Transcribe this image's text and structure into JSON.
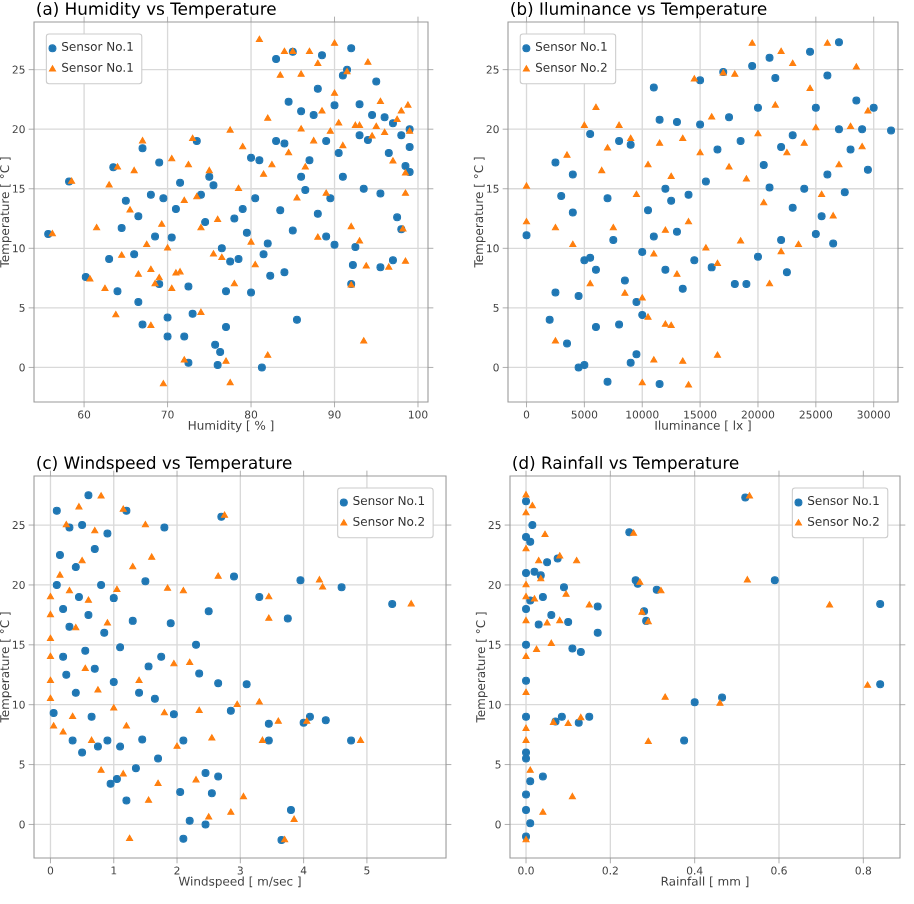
{
  "chart_data": [
    {
      "type": "scatter",
      "title": "(a) Humidity vs Temperature",
      "xlabel": "Humidity [ % ]",
      "ylabel": "Temperature [ °C ]",
      "xlim": [
        54,
        101.2
      ],
      "ylim": [
        -2.9,
        29
      ],
      "xticks": [
        60,
        70,
        80,
        90,
        100
      ],
      "yticks": [
        0,
        5,
        10,
        15,
        20,
        25
      ],
      "grid": true,
      "legend": "top left",
      "series": [
        {
          "name": "Sensor No.1",
          "color": "#1f77b4",
          "marker": "circle",
          "x": [
            55.7,
            58.2,
            60.2,
            63,
            63.5,
            64,
            64.5,
            65,
            66,
            66.5,
            67,
            66.5,
            67,
            68,
            68.5,
            69,
            69,
            69.5,
            70,
            70,
            70.5,
            71,
            71.5,
            72,
            72.5,
            72.5,
            73,
            73.5,
            74,
            74.5,
            75,
            75.5,
            75.7,
            76,
            76.3,
            76.5,
            77,
            77,
            77.5,
            78,
            78.5,
            79,
            79.5,
            80,
            80,
            80.5,
            81,
            81.3,
            81.5,
            82,
            82.3,
            83,
            83,
            83.5,
            84,
            84,
            84.5,
            85,
            85.5,
            85,
            86,
            86,
            86.5,
            87,
            87.5,
            88,
            88,
            88.5,
            89,
            89,
            89.5,
            90,
            90,
            90.5,
            91,
            91,
            91.5,
            92,
            92,
            92.2,
            92.5,
            93,
            93,
            93.5,
            94,
            94.5,
            95,
            95.5,
            95.5,
            96,
            96.5,
            97,
            97,
            97.5,
            98,
            98,
            98.5,
            99,
            99,
            99
          ],
          "values": [
            11.2,
            15.6,
            7.6,
            9.1,
            16.8,
            6.4,
            11.7,
            14,
            9.5,
            12.7,
            18.4,
            5.5,
            3.6,
            14.5,
            11,
            17.2,
            7,
            14.2,
            4.2,
            2.6,
            10.9,
            13.3,
            15.5,
            2.6,
            0.4,
            6.8,
            4.5,
            19,
            14.5,
            12.2,
            16,
            15.3,
            1.9,
            0.2,
            1.3,
            10,
            3.4,
            6.4,
            8.9,
            12.5,
            9.1,
            13.3,
            11.3,
            6.3,
            17.6,
            14.2,
            17.4,
            0,
            9.5,
            10.4,
            7.7,
            19,
            25.9,
            13.2,
            8,
            18.8,
            22.3,
            11.5,
            4,
            26.5,
            21.5,
            16,
            14.9,
            17.4,
            21.2,
            12.9,
            23.4,
            26.2,
            19,
            11,
            14.2,
            22,
            10.3,
            18,
            24.5,
            16,
            25,
            26.8,
            7,
            8.6,
            10.1,
            22.1,
            19.5,
            15,
            19.1,
            21.2,
            24,
            8.4,
            14.6,
            21,
            18,
            20.5,
            9,
            12.6,
            19.5,
            11.6,
            16.9,
            20,
            16.4,
            18.5
          ]
        },
        {
          "name": "Sensor No.1",
          "color": "#ff7f0e",
          "marker": "triangle",
          "x": [
            56.2,
            58.5,
            60.7,
            61.5,
            62.5,
            63,
            63.8,
            64,
            64.5,
            65.5,
            66,
            66.5,
            67,
            67.5,
            68,
            68,
            68.5,
            69,
            69.3,
            69.5,
            70,
            70.5,
            70.5,
            71,
            71.5,
            72,
            72,
            72.5,
            73,
            73.5,
            74,
            74,
            75,
            75.5,
            76,
            76.5,
            77,
            77.5,
            77.5,
            78,
            78.5,
            79,
            80,
            80.5,
            81,
            81.5,
            82,
            82,
            82.5,
            83.5,
            84,
            84.5,
            85,
            85.5,
            86,
            86,
            86.5,
            87,
            87.5,
            88,
            88,
            88.5,
            89,
            89.5,
            90,
            90,
            90.5,
            91,
            91.5,
            92,
            92,
            92.5,
            93,
            93,
            93.5,
            93.8,
            94,
            94.5,
            95,
            95.5,
            96,
            96.5,
            97,
            97.5,
            98,
            98.2,
            98.5,
            98.5,
            99,
            98.8,
            98.5
          ],
          "values": [
            11.2,
            15.6,
            7.4,
            11.7,
            6.6,
            15.3,
            4.4,
            16.8,
            9.4,
            13.2,
            16.5,
            7.8,
            19,
            10.3,
            8.2,
            3.5,
            7,
            7.5,
            12,
            -1.4,
            10,
            6.6,
            17.5,
            7.9,
            8,
            0.6,
            14,
            17,
            19.2,
            14.3,
            4.6,
            11.7,
            16.5,
            9.5,
            12.4,
            9.2,
            0.5,
            -1.3,
            19.9,
            7,
            15,
            18.5,
            10.5,
            8.6,
            27.5,
            16.2,
            20.9,
            1,
            17,
            24.5,
            26.5,
            18,
            26.5,
            14.2,
            20,
            24.6,
            16.8,
            26.5,
            19,
            25.5,
            10.9,
            21.5,
            14.6,
            19.8,
            27.2,
            23,
            20.5,
            18.6,
            24.8,
            11.8,
            6.9,
            20.3,
            10.6,
            20.3,
            2.2,
            8.5,
            25.6,
            19.4,
            20.2,
            22.3,
            19.7,
            8.4,
            17.3,
            20.8,
            21.5,
            11.6,
            8.9,
            14.6,
            19.8,
            22,
            16.3
          ]
        }
      ]
    },
    {
      "type": "scatter",
      "title": "(b) Iluminance vs Temperature",
      "xlabel": "Iluminance [ lx ]",
      "ylabel": "Temperature [ °C ]",
      "xlim": [
        -1600,
        32100
      ],
      "ylim": [
        -2.9,
        29
      ],
      "xticks": [
        0,
        5000,
        10000,
        15000,
        20000,
        25000,
        30000
      ],
      "yticks": [
        0,
        5,
        10,
        15,
        20,
        25
      ],
      "grid": true,
      "legend": "top left",
      "series": [
        {
          "name": "Sensor No.1",
          "color": "#1f77b4",
          "marker": "circle",
          "x": [
            0,
            2000,
            2500,
            2500,
            3000,
            3500,
            4000,
            4000,
            4500,
            4500,
            5000,
            5000,
            5500,
            5500,
            6000,
            6000,
            7000,
            7000,
            7500,
            8000,
            8000,
            8500,
            9000,
            9000,
            9500,
            9500,
            10000,
            10000,
            10500,
            11000,
            11000,
            11500,
            11500,
            12000,
            12000,
            12500,
            13000,
            13000,
            13500,
            14000,
            14500,
            15000,
            15000,
            15500,
            16000,
            16500,
            17000,
            17500,
            18000,
            18500,
            19000,
            19500,
            20000,
            20000,
            20500,
            21000,
            21000,
            21500,
            22000,
            22000,
            22500,
            23000,
            23000,
            24000,
            24500,
            25000,
            25000,
            25500,
            26000,
            26000,
            26500,
            27000,
            27000,
            27500,
            28000,
            28500,
            29000,
            29500,
            30000,
            31500
          ],
          "values": [
            11.1,
            4,
            17.2,
            6.3,
            14.4,
            2,
            16.2,
            13,
            6,
            0,
            9,
            0.2,
            9.2,
            19.6,
            8.2,
            3.4,
            14.2,
            -1.2,
            10.7,
            3.6,
            19,
            7.3,
            0.4,
            18.7,
            1.1,
            5.5,
            4.4,
            9.7,
            13.2,
            23.5,
            11,
            20.8,
            -1.4,
            15,
            8.2,
            14,
            20.6,
            11.4,
            6.6,
            14.5,
            9,
            24.1,
            20.4,
            15.6,
            8.4,
            18.3,
            24.8,
            21,
            7,
            19,
            7,
            25.3,
            9.3,
            21.8,
            17,
            15.1,
            26,
            24.3,
            10.7,
            18.5,
            8,
            13.4,
            19.5,
            15,
            26.5,
            11.2,
            21.8,
            12.7,
            24.5,
            16.2,
            10.4,
            27.3,
            20,
            14.7,
            18.3,
            22.4,
            20,
            16.6,
            21.8,
            19.9
          ]
        },
        {
          "name": "Sensor No.2",
          "color": "#ff7f0e",
          "marker": "triangle",
          "x": [
            0,
            0,
            2500,
            2500,
            3500,
            4000,
            5000,
            5500,
            6000,
            6500,
            7000,
            7500,
            8000,
            8500,
            9000,
            9500,
            10000,
            10000,
            10500,
            10500,
            11000,
            11000,
            11500,
            12000,
            12000,
            12500,
            12500,
            13000,
            13500,
            13500,
            14000,
            14000,
            14500,
            15000,
            15500,
            16000,
            16500,
            16500,
            17000,
            17500,
            18000,
            18500,
            19000,
            19500,
            20000,
            20500,
            21000,
            21500,
            22000,
            22000,
            22500,
            23000,
            23500,
            24000,
            24500,
            25000,
            25500,
            26000,
            26500,
            27000,
            28000,
            28500,
            29000,
            29500
          ],
          "values": [
            15.2,
            12.2,
            2.2,
            11.7,
            17.8,
            10.3,
            20.3,
            7,
            21.8,
            16.5,
            18.4,
            11.7,
            20.3,
            6.2,
            19.2,
            14.5,
            -1.3,
            5.8,
            4.2,
            17,
            9.5,
            0.6,
            18.8,
            3.6,
            11.5,
            16,
            3.5,
            7.8,
            19.2,
            0.5,
            -1.5,
            12.2,
            24.2,
            18,
            10,
            21,
            1,
            8.7,
            24.7,
            16.8,
            24.6,
            10.6,
            15.8,
            27.2,
            19.6,
            13.8,
            7,
            22,
            26.5,
            9.7,
            18,
            25.5,
            10.3,
            18.8,
            23.4,
            20.1,
            14.5,
            27.2,
            12.7,
            17,
            20.2,
            25.2,
            18.5,
            21.5
          ]
        }
      ]
    },
    {
      "type": "scatter",
      "title": "(c) Windspeed vs Temperature",
      "xlabel": "Windspeed [ m/sec ]",
      "ylabel": "Temperature [ °C ]",
      "xlim": [
        -0.26,
        6.25
      ],
      "ylim": [
        -2.8,
        29.1
      ],
      "xticks": [
        0,
        1,
        2,
        3,
        4,
        5
      ],
      "yticks": [
        0,
        5,
        10,
        15,
        20,
        25
      ],
      "grid": true,
      "legend": "top right",
      "series": [
        {
          "name": "Sensor No.1",
          "color": "#1f77b4",
          "marker": "circle",
          "x": [
            0.05,
            0.1,
            0.1,
            0.15,
            0.2,
            0.2,
            0.25,
            0.3,
            0.3,
            0.35,
            0.4,
            0.4,
            0.45,
            0.5,
            0.5,
            0.55,
            0.6,
            0.6,
            0.65,
            0.7,
            0.7,
            0.75,
            0.8,
            0.85,
            0.9,
            0.9,
            0.95,
            1,
            1,
            1.05,
            1.1,
            1.1,
            1.2,
            1.2,
            1.3,
            1.35,
            1.4,
            1.45,
            1.5,
            1.55,
            1.65,
            1.7,
            1.75,
            1.8,
            1.9,
            1.95,
            2.05,
            2.1,
            2.1,
            2.2,
            2.3,
            2.35,
            2.45,
            2.45,
            2.5,
            2.55,
            2.65,
            2.65,
            2.7,
            2.85,
            2.9,
            3.1,
            3.3,
            3.45,
            3.45,
            3.65,
            3.75,
            3.8,
            3.95,
            4,
            4.1,
            4.35,
            4.6,
            4.75,
            5.4
          ],
          "values": [
            9.3,
            26.2,
            20,
            22.5,
            14,
            18,
            12.5,
            24.8,
            16.5,
            7,
            21.5,
            11,
            19,
            6,
            25,
            14.5,
            27.5,
            17.5,
            9,
            23,
            13,
            6.5,
            20,
            16,
            24.3,
            7,
            3.4,
            18.9,
            11.9,
            3.8,
            14.8,
            6.5,
            2,
            26.2,
            17,
            4.7,
            11,
            7.1,
            20.3,
            13.2,
            10.5,
            5.5,
            14,
            24.8,
            16.8,
            9.2,
            2.7,
            -1.2,
            7,
            0.3,
            15,
            12.6,
            4.3,
            0,
            17.8,
            2.6,
            11.8,
            4,
            25.7,
            9.5,
            20.7,
            11.7,
            19,
            7,
            8.4,
            -1.3,
            17.2,
            1.2,
            20.4,
            8.5,
            9,
            8.7,
            19.8,
            7,
            18.4
          ]
        },
        {
          "name": "Sensor No.2",
          "color": "#ff7f0e",
          "marker": "triangle",
          "x": [
            0,
            0,
            0,
            0,
            0,
            0,
            0.05,
            0.15,
            0.2,
            0.25,
            0.3,
            0.35,
            0.4,
            0.45,
            0.5,
            0.55,
            0.6,
            0.65,
            0.7,
            0.75,
            0.8,
            0.8,
            0.9,
            1,
            1.05,
            1.15,
            1.15,
            1.2,
            1.25,
            1.3,
            1.4,
            1.5,
            1.55,
            1.6,
            1.7,
            1.8,
            1.85,
            1.95,
            2,
            2.1,
            2.2,
            2.3,
            2.35,
            2.5,
            2.55,
            2.65,
            2.75,
            2.85,
            2.95,
            3.05,
            3.3,
            3.35,
            3.45,
            3.45,
            3.6,
            3.7,
            3.85,
            4.05,
            4.25,
            4.3,
            4.9,
            5.7
          ],
          "values": [
            19,
            17.5,
            15.5,
            14,
            12,
            10.5,
            8.2,
            20.8,
            7.7,
            25,
            19.5,
            9,
            16.4,
            26.5,
            22,
            13,
            18.7,
            7,
            24.5,
            11.2,
            27.4,
            4.5,
            16.8,
            9.7,
            19.6,
            4.2,
            26.3,
            8.2,
            -1.2,
            21.5,
            12,
            25,
            2,
            22.3,
            3.4,
            9.3,
            19.7,
            13.4,
            6.5,
            19.5,
            13.5,
            3.7,
            9.5,
            0.6,
            7.2,
            20.7,
            25.8,
            1,
            10,
            2.3,
            10.2,
            7,
            19,
            17.2,
            8.6,
            -1.3,
            0.4,
            8.6,
            20.4,
            19.8,
            7,
            18.4
          ]
        }
      ]
    },
    {
      "type": "scatter",
      "title": "(d) Rainfall vs Temperature",
      "xlabel": "Rainfall [ mm ]",
      "ylabel": "Temperature [ °C ]",
      "xlim": [
        -0.038,
        0.887
      ],
      "ylim": [
        -2.8,
        29.1
      ],
      "xticks": [
        {
          "value": 0,
          "label": "0.0"
        },
        {
          "value": 0.2,
          "label": "0.2"
        },
        {
          "value": 0.4,
          "label": "0.4"
        },
        {
          "value": 0.6,
          "label": "0.6"
        },
        {
          "value": 0.8,
          "label": "0.8"
        }
      ],
      "yticks": [
        0,
        5,
        10,
        15,
        20,
        25
      ],
      "grid": true,
      "legend": "top right",
      "series": [
        {
          "name": "Sensor No.1",
          "color": "#1f77b4",
          "marker": "circle",
          "x": [
            0,
            0,
            0,
            0,
            0,
            0,
            0,
            0,
            0,
            0,
            0,
            0,
            0.01,
            0.01,
            0.01,
            0.015,
            0.01,
            0.02,
            0.03,
            0.035,
            0.04,
            0.04,
            0.05,
            0.06,
            0.07,
            0.075,
            0.085,
            0.09,
            0.1,
            0.11,
            0.125,
            0.13,
            0.15,
            0.17,
            0.17,
            0.245,
            0.26,
            0.265,
            0.28,
            0.285,
            0.31,
            0.375,
            0.4,
            0.465,
            0.52,
            0.59,
            0.84,
            0.84
          ],
          "values": [
            27,
            24,
            21,
            18,
            15,
            12,
            9,
            6,
            5.5,
            2.5,
            1.2,
            -1,
            0.1,
            3.6,
            18.7,
            25,
            23.6,
            21.1,
            16.7,
            20.8,
            4,
            19,
            21.9,
            17.5,
            8.6,
            22.2,
            9,
            19.8,
            16.9,
            14.7,
            8.5,
            14.4,
            9,
            16,
            18.2,
            24.4,
            20.4,
            20.1,
            17.8,
            17,
            19.6,
            7,
            10.2,
            10.6,
            27.3,
            20.4,
            18.4,
            11.7
          ]
        },
        {
          "name": "Sensor No.2",
          "color": "#ff7f0e",
          "marker": "triangle",
          "x": [
            0,
            0,
            0,
            0,
            0,
            0,
            0,
            0,
            0,
            0,
            0,
            0.01,
            0.015,
            0.02,
            0.025,
            0.03,
            0.035,
            0.04,
            0.045,
            0.05,
            0.06,
            0.065,
            0.08,
            0.08,
            0.095,
            0.1,
            0.11,
            0.12,
            0.13,
            0.15,
            0.255,
            0.27,
            0.275,
            0.29,
            0.29,
            0.32,
            0.33,
            0.46,
            0.525,
            0.53,
            0.72,
            0.81
          ],
          "values": [
            27.5,
            26,
            23,
            20,
            19,
            17,
            14,
            11,
            8,
            7,
            -1.3,
            4.5,
            26.6,
            18.8,
            14.6,
            22,
            20.5,
            1,
            24.2,
            16.8,
            15.1,
            8.5,
            22.4,
            17,
            19.2,
            8.4,
            2.3,
            22,
            8.9,
            18.3,
            24.3,
            20.2,
            17.7,
            16.9,
            6.9,
            19.5,
            10.6,
            10.1,
            20.4,
            27.4,
            18.3,
            11.6
          ]
        }
      ]
    }
  ]
}
